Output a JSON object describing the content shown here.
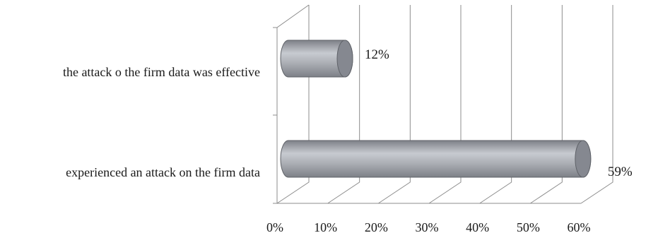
{
  "chart_data": {
    "type": "bar",
    "orientation": "horizontal",
    "style": "3d-cylinder",
    "title": "",
    "xlabel": "",
    "ylabel": "",
    "categories": [
      "the attack o the firm data was effective",
      "experienced an attack on the firm data"
    ],
    "values": [
      12,
      59
    ],
    "data_labels": [
      "12%",
      "59%"
    ],
    "x_ticks": [
      "0%",
      "10%",
      "20%",
      "30%",
      "40%",
      "50%",
      "60%"
    ],
    "xlim": [
      0,
      60
    ],
    "grid": true,
    "legend": "none",
    "colors": {
      "bar_mid": "#aeb1b7",
      "bar_light": "#c7cad0",
      "bar_dark": "#7d8087",
      "cap": "#858890",
      "grid": "#8c8c8c"
    }
  }
}
